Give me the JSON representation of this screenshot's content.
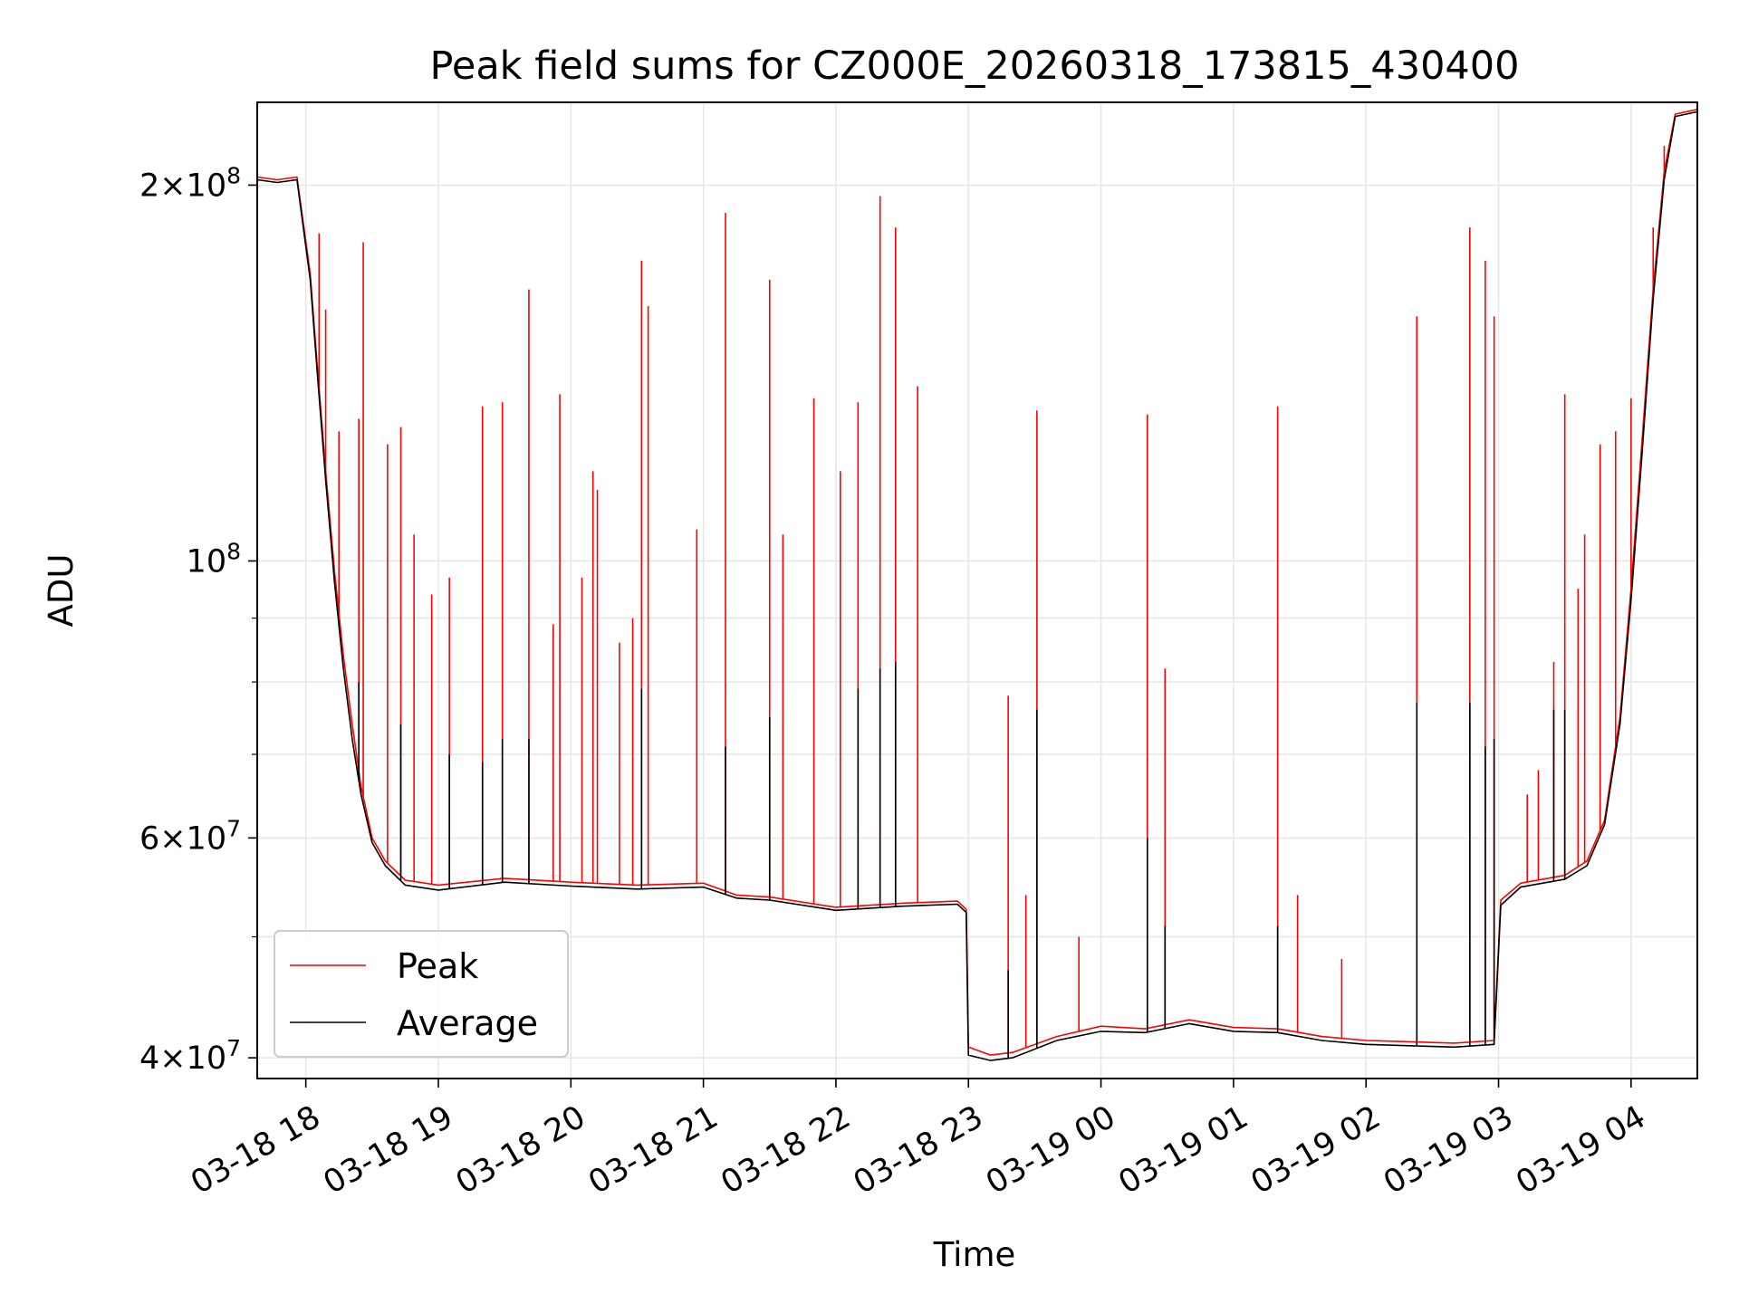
{
  "chart_data": {
    "type": "line",
    "title": "Peak field sums for CZ000E_20260318_173815_430400",
    "xlabel": "Time",
    "ylabel": "ADU",
    "xlim": [
      "2026-03-18 17:38",
      "2026-03-19 04:30"
    ],
    "ylim": [
      38500000,
      233000000
    ],
    "yscale": "log",
    "grid": true,
    "legend_position": "lower-left",
    "x_tick_labels": [
      "03-18 18",
      "03-18 19",
      "03-18 20",
      "03-18 21",
      "03-18 22",
      "03-18 23",
      "03-19 00",
      "03-19 01",
      "03-19 02",
      "03-19 03",
      "03-19 04"
    ],
    "x_tick_times": [
      "2026-03-18 18:00",
      "2026-03-18 19:00",
      "2026-03-18 20:00",
      "2026-03-18 21:00",
      "2026-03-18 22:00",
      "2026-03-18 23:00",
      "2026-03-19 00:00",
      "2026-03-19 01:00",
      "2026-03-19 02:00",
      "2026-03-19 03:00",
      "2026-03-19 04:00"
    ],
    "y_ticks": [
      {
        "value": 40000000,
        "mantissa": "4",
        "exponent": "7"
      },
      {
        "value": 60000000,
        "mantissa": "6",
        "exponent": "7"
      },
      {
        "value": 100000000,
        "mantissa": "",
        "exponent": "8"
      },
      {
        "value": 200000000,
        "mantissa": "2",
        "exponent": "8"
      }
    ],
    "y_minor_ticks": [
      50000000,
      70000000,
      80000000,
      90000000
    ],
    "series": [
      {
        "name": "Peak",
        "color": "#ff0000",
        "baseline": [
          [
            "2026-03-18 17:38",
            203000000
          ],
          [
            "2026-03-18 17:47",
            202000000
          ],
          [
            "2026-03-18 17:56",
            203000000
          ],
          [
            "2026-03-18 18:02",
            170000000
          ],
          [
            "2026-03-18 18:05",
            145000000
          ],
          [
            "2026-03-18 18:09",
            118000000
          ],
          [
            "2026-03-18 18:13",
            98000000
          ],
          [
            "2026-03-18 18:17",
            84000000
          ],
          [
            "2026-03-18 18:21",
            74000000
          ],
          [
            "2026-03-18 18:25",
            66000000
          ],
          [
            "2026-03-18 18:30",
            60000000
          ],
          [
            "2026-03-18 18:36",
            57500000
          ],
          [
            "2026-03-18 18:45",
            55500000
          ],
          [
            "2026-03-18 19:00",
            55000000
          ],
          [
            "2026-03-18 19:30",
            55700000
          ],
          [
            "2026-03-18 20:00",
            55300000
          ],
          [
            "2026-03-18 20:30",
            55000000
          ],
          [
            "2026-03-18 21:00",
            55200000
          ],
          [
            "2026-03-18 21:15",
            54000000
          ],
          [
            "2026-03-18 21:30",
            53800000
          ],
          [
            "2026-03-18 22:00",
            52800000
          ],
          [
            "2026-03-18 22:30",
            53200000
          ],
          [
            "2026-03-18 22:55",
            53400000
          ],
          [
            "2026-03-18 22:59",
            52600000
          ],
          [
            "2026-03-18 23:00",
            40800000
          ],
          [
            "2026-03-18 23:10",
            40200000
          ],
          [
            "2026-03-18 23:20",
            40400000
          ],
          [
            "2026-03-18 23:40",
            41600000
          ],
          [
            "2026-03-19 00:00",
            42400000
          ],
          [
            "2026-03-19 00:20",
            42200000
          ],
          [
            "2026-03-19 00:40",
            42900000
          ],
          [
            "2026-03-19 01:00",
            42300000
          ],
          [
            "2026-03-19 01:20",
            42200000
          ],
          [
            "2026-03-19 01:40",
            41600000
          ],
          [
            "2026-03-19 02:00",
            41300000
          ],
          [
            "2026-03-19 02:20",
            41200000
          ],
          [
            "2026-03-19 02:40",
            41100000
          ],
          [
            "2026-03-19 02:58",
            41300000
          ],
          [
            "2026-03-19 03:01",
            53500000
          ],
          [
            "2026-03-19 03:10",
            55200000
          ],
          [
            "2026-03-19 03:30",
            56000000
          ],
          [
            "2026-03-19 03:40",
            57500000
          ],
          [
            "2026-03-19 03:48",
            62000000
          ],
          [
            "2026-03-19 03:55",
            75000000
          ],
          [
            "2026-03-19 04:00",
            95000000
          ],
          [
            "2026-03-19 04:05",
            125000000
          ],
          [
            "2026-03-19 04:10",
            165000000
          ],
          [
            "2026-03-19 04:15",
            205000000
          ],
          [
            "2026-03-19 04:20",
            228000000
          ],
          [
            "2026-03-19 04:30",
            230000000
          ]
        ],
        "spikes": [
          [
            "2026-03-18 18:06",
            183000000
          ],
          [
            "2026-03-18 18:09",
            159000000
          ],
          [
            "2026-03-18 18:15",
            127000000
          ],
          [
            "2026-03-18 18:24",
            130000000
          ],
          [
            "2026-03-18 18:26",
            180000000
          ],
          [
            "2026-03-18 18:37",
            124000000
          ],
          [
            "2026-03-18 18:43",
            128000000
          ],
          [
            "2026-03-18 18:49",
            105000000
          ],
          [
            "2026-03-18 18:57",
            94000000
          ],
          [
            "2026-03-18 19:05",
            97000000
          ],
          [
            "2026-03-18 19:20",
            133000000
          ],
          [
            "2026-03-18 19:29",
            134000000
          ],
          [
            "2026-03-18 19:41",
            165000000
          ],
          [
            "2026-03-18 19:52",
            89000000
          ],
          [
            "2026-03-18 19:55",
            136000000
          ],
          [
            "2026-03-18 20:05",
            97000000
          ],
          [
            "2026-03-18 20:10",
            118000000
          ],
          [
            "2026-03-18 20:12",
            114000000
          ],
          [
            "2026-03-18 20:22",
            86000000
          ],
          [
            "2026-03-18 20:28",
            90000000
          ],
          [
            "2026-03-18 20:32",
            174000000
          ],
          [
            "2026-03-18 20:35",
            160000000
          ],
          [
            "2026-03-18 20:57",
            106000000
          ],
          [
            "2026-03-18 21:10",
            190000000
          ],
          [
            "2026-03-18 21:30",
            168000000
          ],
          [
            "2026-03-18 21:36",
            105000000
          ],
          [
            "2026-03-18 21:50",
            135000000
          ],
          [
            "2026-03-18 22:02",
            118000000
          ],
          [
            "2026-03-18 22:10",
            134000000
          ],
          [
            "2026-03-18 22:20",
            196000000
          ],
          [
            "2026-03-18 22:27",
            185000000
          ],
          [
            "2026-03-18 22:37",
            138000000
          ],
          [
            "2026-03-18 23:18",
            78000000
          ],
          [
            "2026-03-18 23:26",
            54000000
          ],
          [
            "2026-03-18 23:31",
            132000000
          ],
          [
            "2026-03-18 23:50",
            50000000
          ],
          [
            "2026-03-19 00:21",
            131000000
          ],
          [
            "2026-03-19 00:29",
            82000000
          ],
          [
            "2026-03-19 01:20",
            133000000
          ],
          [
            "2026-03-19 01:29",
            54000000
          ],
          [
            "2026-03-19 01:49",
            48000000
          ],
          [
            "2026-03-19 02:23",
            157000000
          ],
          [
            "2026-03-19 02:47",
            185000000
          ],
          [
            "2026-03-19 02:54",
            174000000
          ],
          [
            "2026-03-19 02:58",
            157000000
          ],
          [
            "2026-03-19 03:13",
            65000000
          ],
          [
            "2026-03-19 03:18",
            68000000
          ],
          [
            "2026-03-19 03:25",
            83000000
          ],
          [
            "2026-03-19 03:30",
            136000000
          ],
          [
            "2026-03-19 03:36",
            95000000
          ],
          [
            "2026-03-19 03:39",
            105000000
          ],
          [
            "2026-03-19 03:46",
            124000000
          ],
          [
            "2026-03-19 03:53",
            127000000
          ],
          [
            "2026-03-19 04:00",
            135000000
          ],
          [
            "2026-03-19 04:10",
            185000000
          ],
          [
            "2026-03-19 04:15",
            215000000
          ]
        ]
      },
      {
        "name": "Average",
        "color": "#000000",
        "baseline": [
          [
            "2026-03-18 17:38",
            202000000
          ],
          [
            "2026-03-18 17:47",
            201000000
          ],
          [
            "2026-03-18 17:56",
            202000000
          ],
          [
            "2026-03-18 18:02",
            168000000
          ],
          [
            "2026-03-18 18:05",
            143000000
          ],
          [
            "2026-03-18 18:09",
            116000000
          ],
          [
            "2026-03-18 18:13",
            96000000
          ],
          [
            "2026-03-18 18:17",
            82000000
          ],
          [
            "2026-03-18 18:21",
            72000000
          ],
          [
            "2026-03-18 18:25",
            65000000
          ],
          [
            "2026-03-18 18:30",
            59500000
          ],
          [
            "2026-03-18 18:36",
            57000000
          ],
          [
            "2026-03-18 18:45",
            55000000
          ],
          [
            "2026-03-18 19:00",
            54500000
          ],
          [
            "2026-03-18 19:30",
            55300000
          ],
          [
            "2026-03-18 20:00",
            54900000
          ],
          [
            "2026-03-18 20:30",
            54600000
          ],
          [
            "2026-03-18 21:00",
            54800000
          ],
          [
            "2026-03-18 21:15",
            53700000
          ],
          [
            "2026-03-18 21:30",
            53500000
          ],
          [
            "2026-03-18 22:00",
            52500000
          ],
          [
            "2026-03-18 22:30",
            52900000
          ],
          [
            "2026-03-18 22:55",
            53100000
          ],
          [
            "2026-03-18 22:59",
            52300000
          ],
          [
            "2026-03-18 23:00",
            40200000
          ],
          [
            "2026-03-18 23:10",
            39800000
          ],
          [
            "2026-03-18 23:20",
            40000000
          ],
          [
            "2026-03-18 23:40",
            41300000
          ],
          [
            "2026-03-19 00:00",
            42000000
          ],
          [
            "2026-03-19 00:20",
            41900000
          ],
          [
            "2026-03-19 00:40",
            42600000
          ],
          [
            "2026-03-19 01:00",
            42000000
          ],
          [
            "2026-03-19 01:20",
            41900000
          ],
          [
            "2026-03-19 01:40",
            41300000
          ],
          [
            "2026-03-19 02:00",
            41000000
          ],
          [
            "2026-03-19 02:20",
            40900000
          ],
          [
            "2026-03-19 02:40",
            40800000
          ],
          [
            "2026-03-19 02:58",
            41000000
          ],
          [
            "2026-03-19 03:01",
            53000000
          ],
          [
            "2026-03-19 03:10",
            54800000
          ],
          [
            "2026-03-19 03:30",
            55600000
          ],
          [
            "2026-03-19 03:40",
            57000000
          ],
          [
            "2026-03-19 03:48",
            61500000
          ],
          [
            "2026-03-19 03:55",
            74000000
          ],
          [
            "2026-03-19 04:00",
            93000000
          ],
          [
            "2026-03-19 04:05",
            122000000
          ],
          [
            "2026-03-19 04:10",
            162000000
          ],
          [
            "2026-03-19 04:15",
            202000000
          ],
          [
            "2026-03-19 04:20",
            227000000
          ],
          [
            "2026-03-19 04:30",
            229000000
          ]
        ],
        "spikes": [
          [
            "2026-03-18 18:24",
            80000000
          ],
          [
            "2026-03-18 18:43",
            74000000
          ],
          [
            "2026-03-18 19:05",
            70000000
          ],
          [
            "2026-03-18 19:20",
            69000000
          ],
          [
            "2026-03-18 19:29",
            72000000
          ],
          [
            "2026-03-18 19:41",
            72000000
          ],
          [
            "2026-03-18 20:32",
            79000000
          ],
          [
            "2026-03-18 21:10",
            71000000
          ],
          [
            "2026-03-18 21:30",
            75000000
          ],
          [
            "2026-03-18 22:10",
            79000000
          ],
          [
            "2026-03-18 22:20",
            82000000
          ],
          [
            "2026-03-18 22:27",
            83000000
          ],
          [
            "2026-03-18 23:18",
            47000000
          ],
          [
            "2026-03-18 23:31",
            76000000
          ],
          [
            "2026-03-19 00:21",
            60000000
          ],
          [
            "2026-03-19 00:29",
            51000000
          ],
          [
            "2026-03-19 01:20",
            51000000
          ],
          [
            "2026-03-19 02:23",
            77000000
          ],
          [
            "2026-03-19 02:47",
            77000000
          ],
          [
            "2026-03-19 02:54",
            71000000
          ],
          [
            "2026-03-19 02:58",
            72000000
          ],
          [
            "2026-03-19 03:30",
            76000000
          ],
          [
            "2026-03-19 03:25",
            76000000
          ]
        ]
      }
    ]
  }
}
